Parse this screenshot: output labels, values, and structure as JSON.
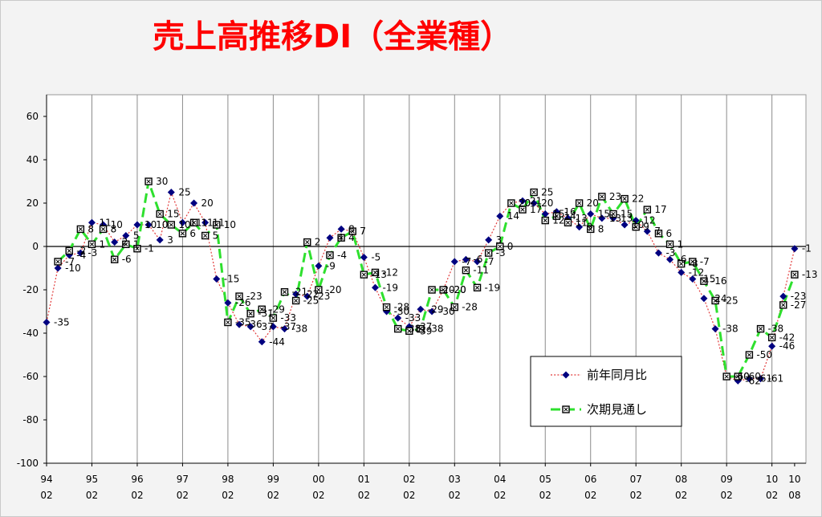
{
  "chart_data": {
    "type": "line",
    "title": "売上高推移DI（全業種）",
    "title_color": "#ff0000",
    "x": [
      "94/02",
      "94/05",
      "94/08",
      "94/11",
      "95/02",
      "95/05",
      "95/08",
      "95/11",
      "96/02",
      "96/05",
      "96/08",
      "96/11",
      "97/02",
      "97/05",
      "97/08",
      "97/11",
      "98/02",
      "98/05",
      "98/08",
      "98/11",
      "99/02",
      "99/05",
      "99/08",
      "99/11",
      "00/02",
      "00/05",
      "00/08",
      "00/11",
      "01/02",
      "01/05",
      "01/08",
      "01/11",
      "02/02",
      "02/05",
      "02/08",
      "02/11",
      "03/02",
      "03/05",
      "03/08",
      "03/11",
      "04/02",
      "04/05",
      "04/08",
      "04/11",
      "05/02",
      "05/05",
      "05/08",
      "05/11",
      "06/02",
      "06/05",
      "06/08",
      "06/11",
      "07/02",
      "07/05",
      "07/08",
      "07/11",
      "08/02",
      "08/05",
      "08/08",
      "08/11",
      "09/02",
      "09/05",
      "09/08",
      "09/11",
      "10/02",
      "10/05",
      "10/08"
    ],
    "x_tick_labels": [
      [
        "94",
        "02"
      ],
      [
        "95",
        "02"
      ],
      [
        "96",
        "02"
      ],
      [
        "97",
        "02"
      ],
      [
        "98",
        "02"
      ],
      [
        "99",
        "02"
      ],
      [
        "00",
        "02"
      ],
      [
        "01",
        "02"
      ],
      [
        "02",
        "02"
      ],
      [
        "03",
        "02"
      ],
      [
        "04",
        "02"
      ],
      [
        "05",
        "02"
      ],
      [
        "06",
        "02"
      ],
      [
        "07",
        "02"
      ],
      [
        "08",
        "02"
      ],
      [
        "09",
        "02"
      ],
      [
        "10",
        "02"
      ],
      [
        "10",
        "08"
      ]
    ],
    "y_ticks": [
      60,
      40,
      20,
      0,
      -20,
      -40,
      -60,
      -80,
      -100
    ],
    "ylim": [
      -100,
      70
    ],
    "grid": {
      "vertical": true,
      "horizontal": false
    },
    "zero_line": true,
    "data_labels": true,
    "legend_position": "lower-right",
    "series": [
      {
        "name": "前年同月比",
        "line_style": "dotted",
        "line_color": "#e23b3b",
        "marker": "diamond",
        "marker_color": "#000080",
        "values": [
          -35,
          -10,
          -4,
          -3,
          11,
          10,
          2,
          5,
          10,
          10,
          3,
          25,
          11,
          20,
          11,
          -15,
          -26,
          -36,
          -37,
          -44,
          -37,
          -38,
          -22,
          -23,
          -9,
          4,
          8,
          7,
          -5,
          -19,
          -30,
          -33,
          -37,
          -29,
          -30,
          -20,
          -7,
          -6,
          -7,
          3,
          14,
          20,
          21,
          20,
          15,
          16,
          13,
          9,
          15,
          13,
          13,
          10,
          12,
          7,
          -3,
          -6,
          -12,
          -15,
          -24,
          -38,
          -60,
          -62,
          -61,
          -61,
          -46,
          -23,
          -1
        ]
      },
      {
        "name": "次期見通し",
        "line_style": "dashed",
        "line_color": "#2ee02e",
        "marker": "square",
        "marker_color": "#000000",
        "values": [
          null,
          -7,
          -2,
          8,
          1,
          8,
          -6,
          1,
          -1,
          30,
          15,
          10,
          6,
          11,
          5,
          10,
          -35,
          -23,
          -31,
          -29,
          -33,
          -21,
          -25,
          2,
          -20,
          -4,
          4,
          7,
          -13,
          -12,
          -28,
          -38,
          -39,
          -38,
          -20,
          -20,
          -28,
          -11,
          -19,
          -3,
          0,
          20,
          17,
          25,
          12,
          14,
          11,
          20,
          8,
          23,
          15,
          22,
          9,
          17,
          6,
          1,
          -8,
          -7,
          -16,
          -25,
          -60,
          -60,
          -50,
          -38,
          -42,
          -27,
          -13
        ]
      }
    ]
  }
}
